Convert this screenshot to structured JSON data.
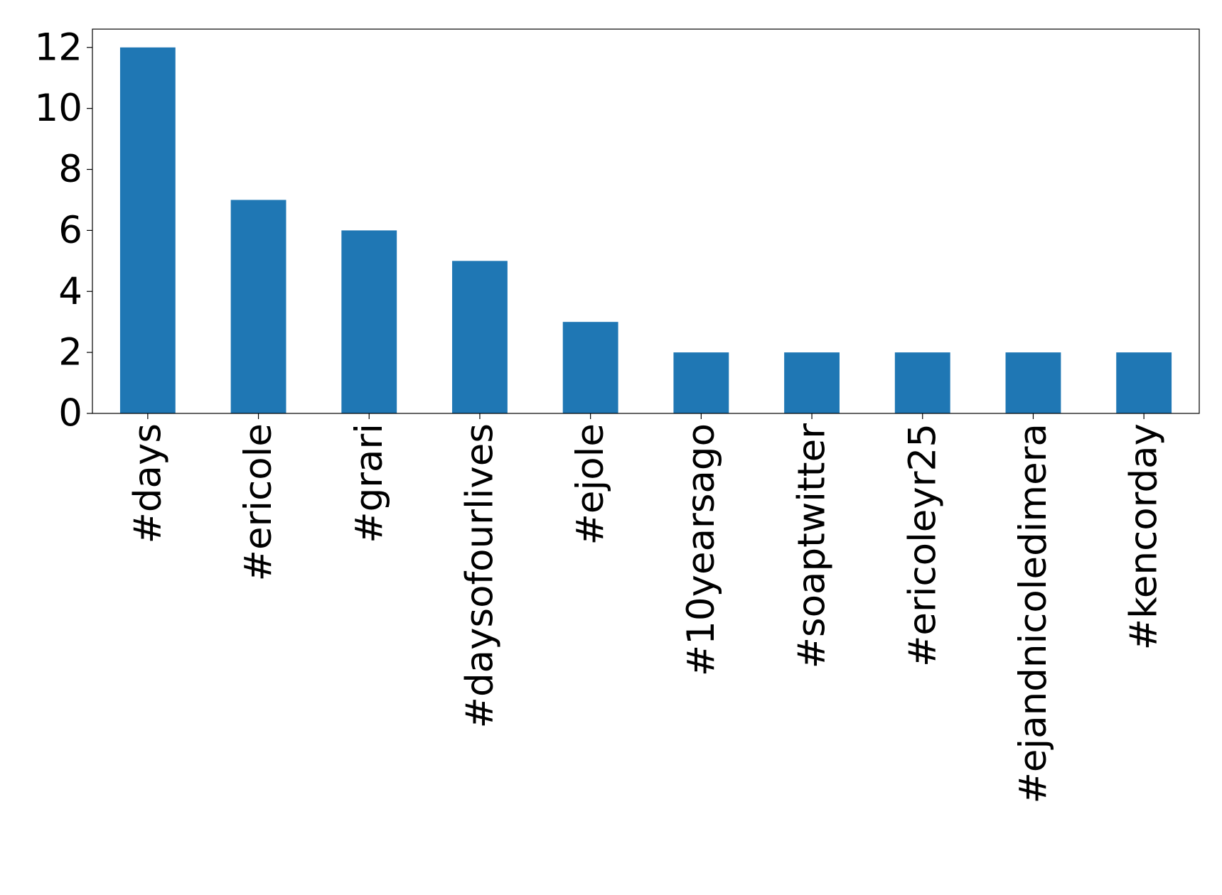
{
  "chart_data": {
    "type": "bar",
    "categories": [
      "#days",
      "#ericole",
      "#grari",
      "#daysofourlives",
      "#ejole",
      "#10yearsago",
      "#soaptwitter",
      "#ericoleyr25",
      "#ejandnicoledimera",
      "#kencorday"
    ],
    "values": [
      12,
      7,
      6,
      5,
      3,
      2,
      2,
      2,
      2,
      2
    ],
    "color": "#1f77b4",
    "ylim": [
      0,
      12.6
    ],
    "yticks": [
      0,
      2,
      4,
      6,
      8,
      10,
      12
    ],
    "grid": false
  }
}
